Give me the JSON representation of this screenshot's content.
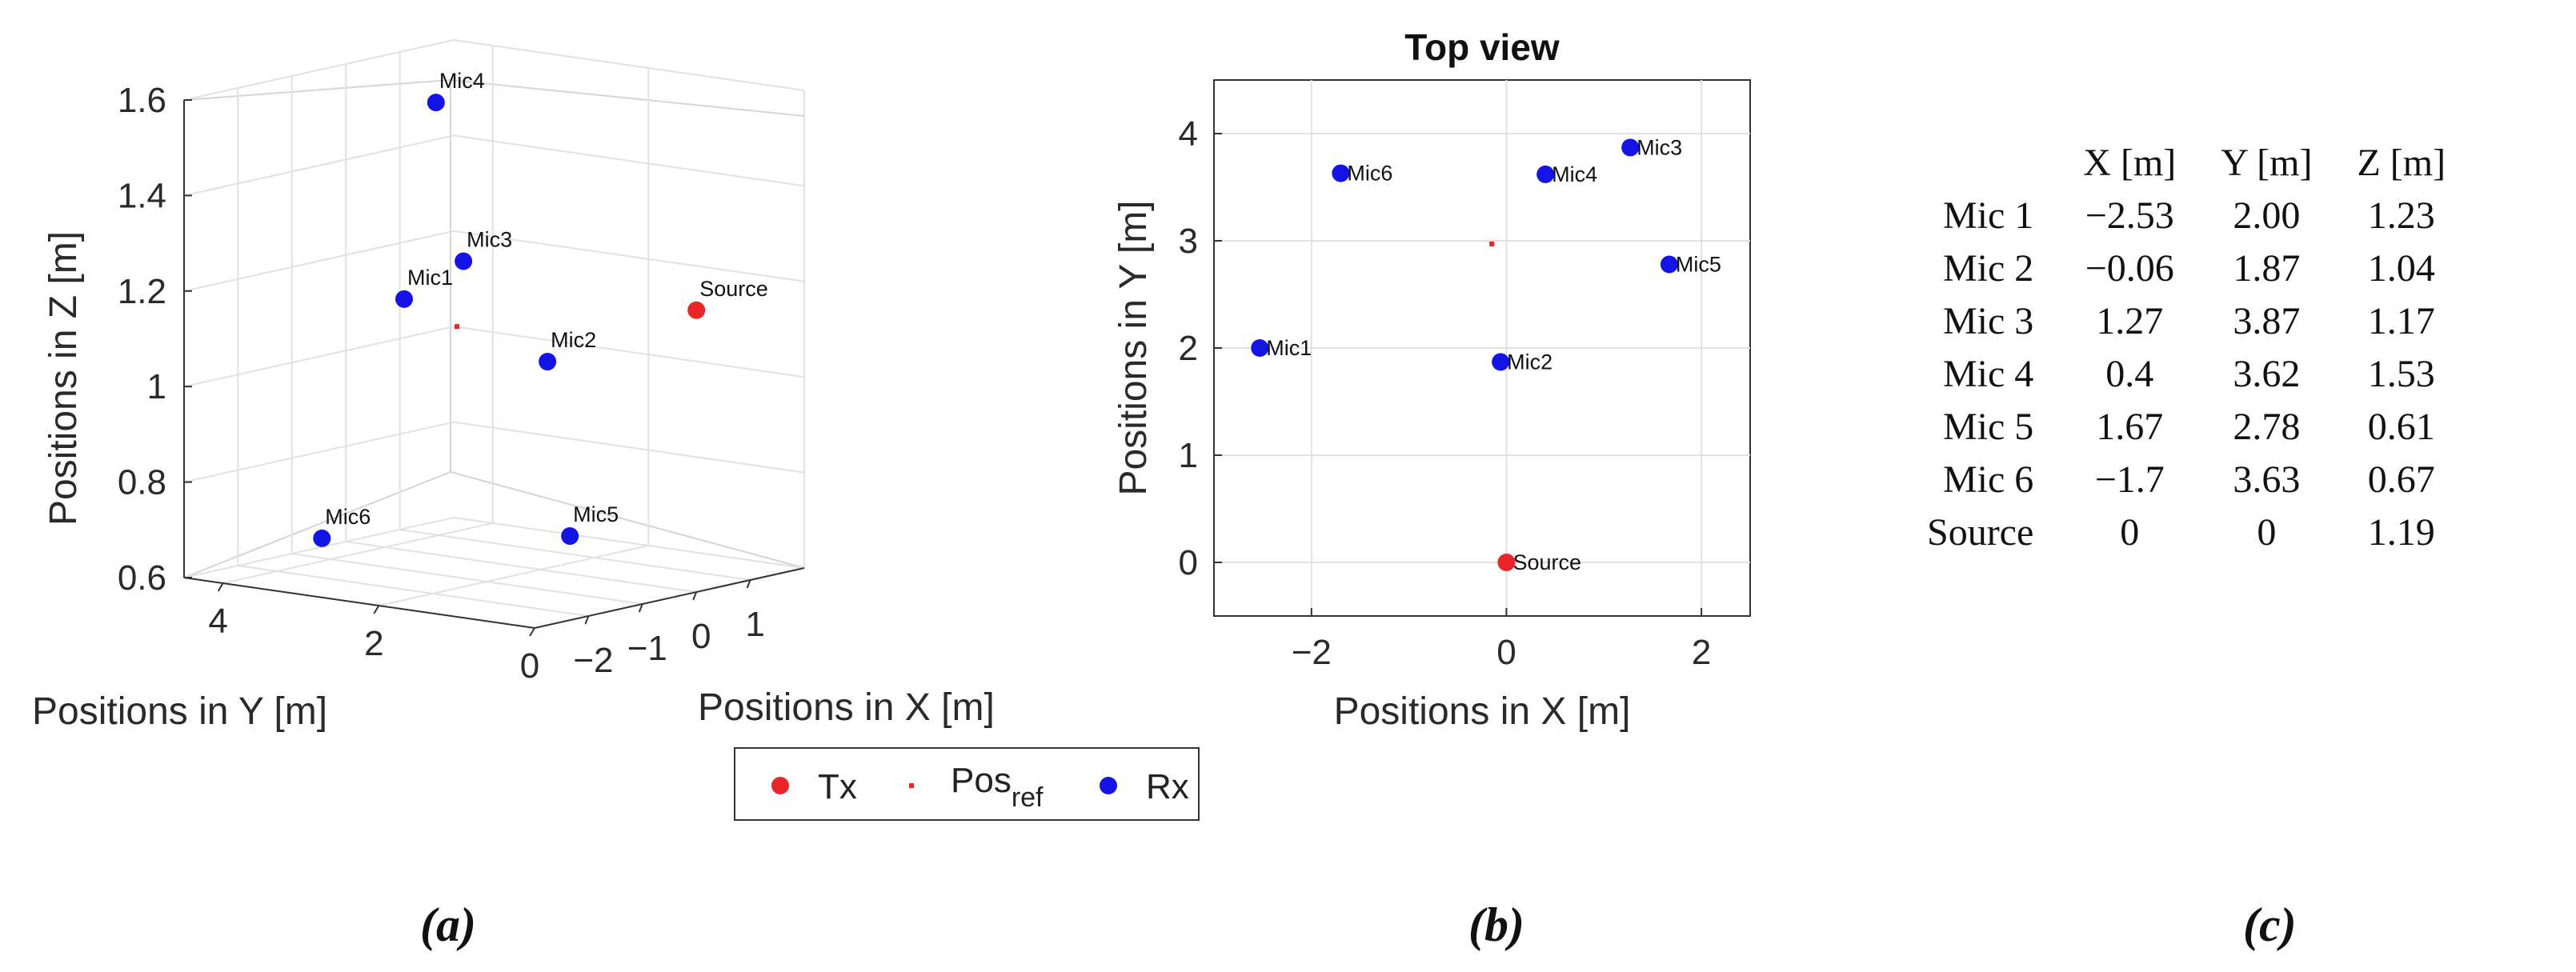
{
  "chart_data": [
    {
      "type": "scatter3d",
      "panel": "(a)",
      "xlabel": "Positions in X [m]",
      "ylabel": "Positions in Y [m]",
      "zlabel": "Positions in Z [m]",
      "xlim": [
        -3,
        2
      ],
      "ylim": [
        0,
        4.5
      ],
      "zlim": [
        0.6,
        1.6
      ],
      "x_ticks": [
        "−2",
        "−1",
        "0",
        "1"
      ],
      "y_ticks": [
        "0",
        "2",
        "4"
      ],
      "z_ticks": [
        "0.6",
        "0.8",
        "1",
        "1.2",
        "1.4",
        "1.6"
      ],
      "grid": true,
      "series": [
        {
          "name": "Tx",
          "color": "#e8262a",
          "points": [
            {
              "label": "Source",
              "x": 0,
              "y": 0,
              "z": 1.19
            }
          ]
        },
        {
          "name": "Pos_ref",
          "color": "#e8262a",
          "points": [
            {
              "label": "",
              "x": -0.15,
              "y": 2.97,
              "z": 1.09
            }
          ]
        },
        {
          "name": "Rx",
          "color": "#1414e6",
          "points": [
            {
              "label": "Mic1",
              "x": -2.53,
              "y": 2.0,
              "z": 1.23
            },
            {
              "label": "Mic2",
              "x": -0.06,
              "y": 1.87,
              "z": 1.04
            },
            {
              "label": "Mic3",
              "x": 1.27,
              "y": 3.87,
              "z": 1.17
            },
            {
              "label": "Mic4",
              "x": 0.4,
              "y": 3.62,
              "z": 1.53
            },
            {
              "label": "Mic5",
              "x": 1.67,
              "y": 2.78,
              "z": 0.61
            },
            {
              "label": "Mic6",
              "x": -1.7,
              "y": 3.63,
              "z": 0.67
            }
          ]
        }
      ]
    },
    {
      "type": "scatter",
      "panel": "(b)",
      "title": "Top view",
      "xlabel": "Positions in X [m]",
      "ylabel": "Positions in Y [m]",
      "xlim": [
        -3,
        2.5
      ],
      "ylim": [
        -0.5,
        4.5
      ],
      "x_ticks": [
        -2,
        0,
        2
      ],
      "y_ticks": [
        0,
        1,
        2,
        3,
        4
      ],
      "grid": true,
      "series": [
        {
          "name": "Tx",
          "color": "#e8262a",
          "points": [
            {
              "label": "Source",
              "x": 0,
              "y": 0
            }
          ]
        },
        {
          "name": "Pos_ref",
          "color": "#e8262a",
          "points": [
            {
              "label": "",
              "x": -0.15,
              "y": 2.97
            }
          ]
        },
        {
          "name": "Rx",
          "color": "#1414e6",
          "points": [
            {
              "label": "Mic1",
              "x": -2.53,
              "y": 2.0
            },
            {
              "label": "Mic2",
              "x": -0.06,
              "y": 1.87
            },
            {
              "label": "Mic3",
              "x": 1.27,
              "y": 3.87
            },
            {
              "label": "Mic4",
              "x": 0.4,
              "y": 3.62
            },
            {
              "label": "Mic5",
              "x": 1.67,
              "y": 2.78
            },
            {
              "label": "Mic6",
              "x": -1.7,
              "y": 3.63
            }
          ]
        }
      ]
    },
    {
      "type": "table",
      "panel": "(c)",
      "columns": [
        "",
        "X [m]",
        "Y [m]",
        "Z [m]"
      ],
      "rows": [
        [
          "Mic 1",
          "−2.53",
          "2.00",
          "1.23"
        ],
        [
          "Mic 2",
          "−0.06",
          "1.87",
          "1.04"
        ],
        [
          "Mic 3",
          "1.27",
          "3.87",
          "1.17"
        ],
        [
          "Mic 4",
          "0.4",
          "3.62",
          "1.53"
        ],
        [
          "Mic 5",
          "1.67",
          "2.78",
          "0.61"
        ],
        [
          "Mic 6",
          "−1.7",
          "3.63",
          "0.67"
        ],
        [
          "Source",
          "0",
          "0",
          "1.19"
        ]
      ]
    }
  ],
  "legend": {
    "items": [
      {
        "label": "Tx",
        "color": "#e8262a",
        "marker": "dot"
      },
      {
        "label": "Pos",
        "sub": "ref",
        "color": "#e8262a",
        "marker": "small"
      },
      {
        "label": "Rx",
        "color": "#1414e6",
        "marker": "dot"
      }
    ]
  },
  "panel_labels": {
    "a": "(a)",
    "b": "(b)",
    "c": "(c)"
  }
}
